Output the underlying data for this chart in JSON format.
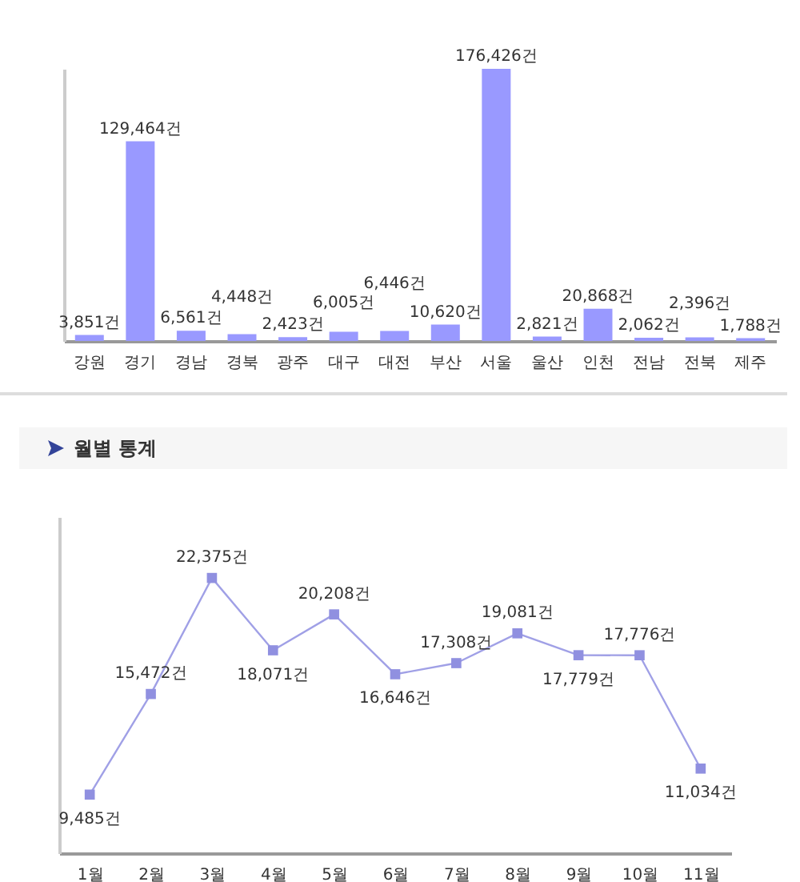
{
  "chart_data": [
    {
      "type": "bar",
      "categories": [
        "강원",
        "경기",
        "경남",
        "경북",
        "광주",
        "대구",
        "대전",
        "부산",
        "서울",
        "울산",
        "인천",
        "전남",
        "전북",
        "제주"
      ],
      "values": [
        3851,
        129464,
        6561,
        4448,
        2423,
        6005,
        6446,
        10620,
        176426,
        2821,
        20868,
        2062,
        2396,
        1788
      ],
      "value_labels": [
        "3,851건",
        "129,464건",
        "6,561건",
        "4,448건",
        "2,423건",
        "6,005건",
        "6,446건",
        "10,620건",
        "176,426건",
        "2,821건",
        "20,868건",
        "2,062건",
        "2,396건",
        "1,788건"
      ],
      "color": "#9999ff",
      "tick_labels": "x",
      "grid": false
    },
    {
      "type": "line",
      "title": "월별 통계",
      "categories": [
        "1월",
        "2월",
        "3월",
        "4월",
        "5월",
        "6월",
        "7월",
        "8월",
        "9월",
        "10월",
        "11월"
      ],
      "series": [
        {
          "color": "#a0a0e6",
          "values": [
            9485,
            15472,
            22375,
            18071,
            20208,
            16646,
            17308,
            19081,
            17779,
            17776,
            11034
          ],
          "value_labels": [
            "9,485건",
            "15,472건",
            "22,375건",
            "18,071건",
            "20,208건",
            "16,646건",
            "17,308건",
            "19,081건",
            "17,779건",
            "17,776건",
            "11,034건"
          ]
        }
      ],
      "marker": "square",
      "line_style": "solid",
      "tick_labels": "x",
      "grid": false
    }
  ]
}
